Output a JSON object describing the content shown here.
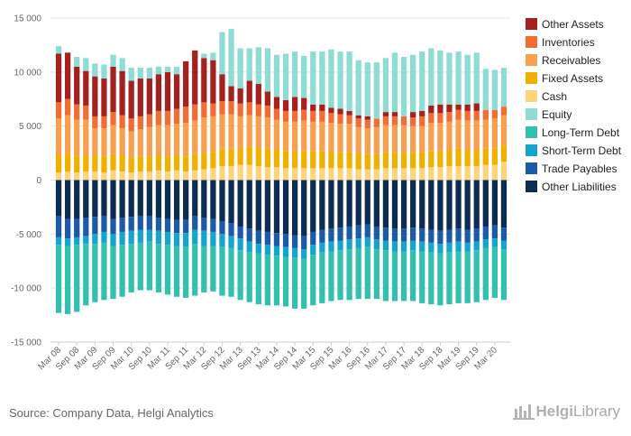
{
  "source": "Source: Company Data, Helgi Analytics",
  "logo": {
    "part1": "Helgi",
    "part2": "Library"
  },
  "chart_data": {
    "type": "bar",
    "stacked": true,
    "ylim": [
      -15000,
      15000
    ],
    "yticks": [
      -15000,
      -10000,
      -5000,
      0,
      5000,
      10000,
      15000
    ],
    "ytick_labels": [
      "-15 000",
      "-10 000",
      "-5 000",
      "0",
      "5 000",
      "10 000",
      "15 000"
    ],
    "grid": true,
    "legend_position": "right",
    "categories": [
      "Mar 08",
      "Jun 08",
      "Sep 08",
      "Dec 08",
      "Mar 09",
      "Jun 09",
      "Sep 09",
      "Dec 09",
      "Mar 10",
      "Jun 10",
      "Sep 10",
      "Dec 10",
      "Mar 11",
      "Jun 11",
      "Sep 11",
      "Dec 11",
      "Mar 12",
      "Jun 12",
      "Sep 12",
      "Dec 12",
      "Mar 13",
      "Jun 13",
      "Sep 13",
      "Dec 13",
      "Mar 14",
      "Jun 14",
      "Sep 14",
      "Dec 14",
      "Mar 15",
      "Jun 15",
      "Sep 15",
      "Dec 15",
      "Mar 16",
      "Jun 16",
      "Sep 16",
      "Dec 16",
      "Mar 17",
      "Jun 17",
      "Sep 17",
      "Dec 17",
      "Mar 18",
      "Jun 18",
      "Sep 18",
      "Dec 18",
      "Mar 19",
      "Jun 19",
      "Sep 19",
      "Dec 19",
      "Mar 20",
      "Jun 20"
    ],
    "x_tick_labels": [
      "Mar 08",
      "Sep 08",
      "Mar 09",
      "Sep 09",
      "Mar 10",
      "Sep 10",
      "Mar 11",
      "Sep 11",
      "Mar 12",
      "Sep 12",
      "Mar 13",
      "Sep 13",
      "Mar 14",
      "Sep 14",
      "Mar 15",
      "Sep 15",
      "Mar 16",
      "Sep 16",
      "Mar 17",
      "Sep 17",
      "Mar 18",
      "Sep 18",
      "Mar 19",
      "Sep 19",
      "Mar 20"
    ],
    "series": [
      {
        "name": "Other Liabilities",
        "color": "#0c2c52",
        "side": "negative",
        "values": [
          -3300,
          -3600,
          -3600,
          -3500,
          -3400,
          -3300,
          -3600,
          -3500,
          -3400,
          -3300,
          -3300,
          -3500,
          -3600,
          -3700,
          -3700,
          -3300,
          -3500,
          -3600,
          -3800,
          -4000,
          -4300,
          -4500,
          -4700,
          -4800,
          -4900,
          -5000,
          -5100,
          -5200,
          -4800,
          -4600,
          -4500,
          -4400,
          -4300,
          -4200,
          -4100,
          -4300,
          -4400,
          -4500,
          -4500,
          -4400,
          -4500,
          -4600,
          -4700,
          -4600,
          -4500,
          -4600,
          -4500,
          -4300,
          -4200,
          -4400
        ]
      },
      {
        "name": "Trade Payables",
        "color": "#1c5aa8",
        "side": "negative",
        "values": [
          -2000,
          -1800,
          -1700,
          -1700,
          -1600,
          -1500,
          -1400,
          -1300,
          -1300,
          -1300,
          -1300,
          -1200,
          -1200,
          -1200,
          -1200,
          -1300,
          -1200,
          -1200,
          -1200,
          -1200,
          -1100,
          -1200,
          -1200,
          -1200,
          -1200,
          -1200,
          -1200,
          -1200,
          -1200,
          -1200,
          -1200,
          -1200,
          -1200,
          -1200,
          -1200,
          -1200,
          -1200,
          -1200,
          -1200,
          -1200,
          -1200,
          -1200,
          -1200,
          -1200,
          -1200,
          -1200,
          -1200,
          -1200,
          -1200,
          -1200
        ]
      },
      {
        "name": "Short-Term Debt",
        "color": "#14a4cc",
        "side": "negative",
        "values": [
          -700,
          -700,
          -700,
          -700,
          -900,
          -1000,
          -1100,
          -1200,
          -1200,
          -1200,
          -1100,
          -1200,
          -1200,
          -1200,
          -1300,
          -1300,
          -1400,
          -1300,
          -1200,
          -1100,
          -1100,
          -1000,
          -900,
          -900,
          -900,
          -900,
          -900,
          -900,
          -900,
          -900,
          -900,
          -900,
          -900,
          -900,
          -900,
          -900,
          -900,
          -900,
          -900,
          -900,
          -900,
          -900,
          -900,
          -900,
          -900,
          -800,
          -800,
          -800,
          -800,
          -800
        ]
      },
      {
        "name": "Long-Term Debt",
        "color": "#34c0b0",
        "side": "negative",
        "values": [
          -6300,
          -6300,
          -6200,
          -5700,
          -5400,
          -5300,
          -4900,
          -4800,
          -4500,
          -4400,
          -4500,
          -4500,
          -4600,
          -4700,
          -4700,
          -4800,
          -4300,
          -4200,
          -4500,
          -4500,
          -4600,
          -4600,
          -4700,
          -4700,
          -4600,
          -4600,
          -4700,
          -4600,
          -4700,
          -4700,
          -4600,
          -4600,
          -4700,
          -4700,
          -4800,
          -4600,
          -4700,
          -4600,
          -4600,
          -4700,
          -4800,
          -4800,
          -4800,
          -4800,
          -4800,
          -4800,
          -4800,
          -4800,
          -4700,
          -4700
        ]
      },
      {
        "name": "Cash",
        "color": "#fcd47c",
        "side": "positive",
        "values": [
          700,
          800,
          700,
          800,
          800,
          700,
          900,
          800,
          700,
          800,
          800,
          900,
          800,
          900,
          800,
          900,
          1000,
          1100,
          1300,
          1300,
          1400,
          1400,
          1300,
          1200,
          1200,
          1100,
          1100,
          1100,
          1100,
          1100,
          1100,
          1100,
          1100,
          1000,
          1000,
          1000,
          1100,
          1100,
          1100,
          1100,
          1100,
          1200,
          1200,
          1300,
          1300,
          1300,
          1300,
          1400,
          1400,
          1700
        ]
      },
      {
        "name": "Fixed Assets",
        "color": "#f0b000",
        "side": "positive",
        "values": [
          1600,
          1700,
          1500,
          1500,
          1500,
          1500,
          1500,
          1500,
          1400,
          1400,
          1400,
          1400,
          1400,
          1400,
          1400,
          1500,
          1500,
          1500,
          1600,
          1600,
          1600,
          1700,
          1700,
          1700,
          1600,
          1600,
          1600,
          1600,
          1600,
          1600,
          1500,
          1500,
          1500,
          1500,
          1400,
          1400,
          1500,
          1500,
          1500,
          1500,
          1500,
          1500,
          1500,
          1500,
          1600,
          1500,
          1500,
          1500,
          1500,
          1500
        ]
      },
      {
        "name": "Receivables",
        "color": "#f8a050",
        "side": "positive",
        "values": [
          3400,
          3500,
          3400,
          3300,
          2500,
          2600,
          2700,
          2500,
          2400,
          2500,
          2700,
          2800,
          2900,
          2900,
          3100,
          3100,
          3300,
          3300,
          3200,
          3200,
          2900,
          2900,
          2900,
          2900,
          2800,
          2700,
          2700,
          2800,
          2700,
          2700,
          2700,
          2600,
          2600,
          2400,
          2400,
          2500,
          2500,
          2500,
          2500,
          2400,
          2400,
          2600,
          2600,
          2600,
          2700,
          2700,
          2700,
          2700,
          2800,
          2800
        ]
      },
      {
        "name": "Inventories",
        "color": "#f26c34",
        "side": "positive",
        "values": [
          1500,
          1500,
          1400,
          1300,
          1100,
          1100,
          1200,
          1200,
          1200,
          1200,
          1200,
          1300,
          1300,
          1400,
          1500,
          1500,
          1400,
          1200,
          1200,
          1200,
          1200,
          1200,
          1100,
          1100,
          1000,
          1000,
          1000,
          1000,
          1000,
          1000,
          900,
          900,
          800,
          800,
          800,
          800,
          800,
          800,
          800,
          800,
          900,
          900,
          900,
          900,
          900,
          900,
          900,
          900,
          800,
          800
        ]
      },
      {
        "name": "Other Assets",
        "color": "#a3211f",
        "side": "positive",
        "values": [
          4500,
          4300,
          3500,
          3200,
          3700,
          3500,
          4200,
          4100,
          3500,
          3500,
          3300,
          3400,
          3600,
          3200,
          4200,
          5000,
          4100,
          4000,
          2500,
          1400,
          1400,
          2000,
          1900,
          1300,
          1100,
          1000,
          1300,
          1100,
          600,
          600,
          500,
          500,
          400,
          300,
          300,
          0,
          400,
          400,
          0,
          500,
          500,
          700,
          800,
          700,
          500,
          600,
          700,
          0,
          0,
          0
        ]
      },
      {
        "name": "Equity",
        "color": "#8fdcd4",
        "side": "positive",
        "values": [
          700,
          0,
          900,
          1200,
          1200,
          1300,
          1100,
          1200,
          1200,
          1000,
          1000,
          700,
          500,
          700,
          0,
          0,
          400,
          700,
          3900,
          5300,
          3700,
          3000,
          3400,
          4000,
          3900,
          4300,
          4200,
          3900,
          4900,
          4900,
          5400,
          5300,
          5500,
          5100,
          5000,
          5200,
          5000,
          5500,
          5500,
          5300,
          5500,
          5300,
          5000,
          4800,
          4900,
          4600,
          4700,
          3800,
          3700,
          3600
        ]
      }
    ],
    "legend_order": [
      "Other Assets",
      "Inventories",
      "Receivables",
      "Fixed Assets",
      "Cash",
      "Equity",
      "Long-Term Debt",
      "Short-Term Debt",
      "Trade Payables",
      "Other Liabilities"
    ]
  }
}
